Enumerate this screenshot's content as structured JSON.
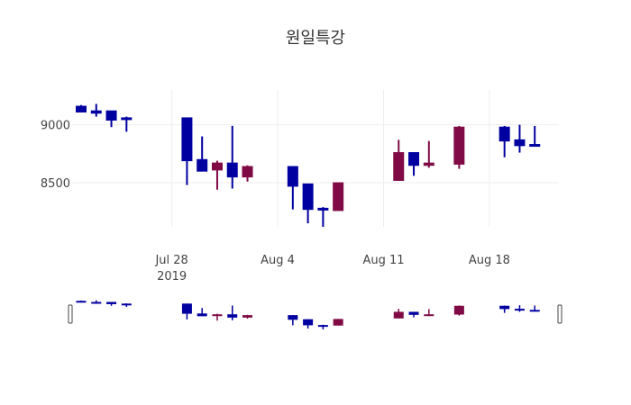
{
  "chart_data": {
    "type": "candlestick",
    "title": "원일특강",
    "xlabel": "",
    "ylabel": "",
    "ylim": [
      8120,
      9300
    ],
    "y_ticks": [
      8500,
      9000
    ],
    "x_ticks": [
      {
        "date": "2019-07-28",
        "label": "Jul 28",
        "sublabel": "2019"
      },
      {
        "date": "2019-08-04",
        "label": "Aug 4",
        "sublabel": ""
      },
      {
        "date": "2019-08-11",
        "label": "Aug 11",
        "sublabel": ""
      },
      {
        "date": "2019-08-18",
        "label": "Aug 18",
        "sublabel": ""
      }
    ],
    "x_range": [
      "2019-07-22",
      "2019-08-22"
    ],
    "increasing_color": "#7f0a45",
    "decreasing_color": "#0000a0",
    "grid": true,
    "rangeslider": true,
    "candles": [
      {
        "date": "2019-07-22",
        "open": 9160,
        "high": 9170,
        "low": 9110,
        "close": 9110
      },
      {
        "date": "2019-07-23",
        "open": 9120,
        "high": 9180,
        "low": 9070,
        "close": 9100
      },
      {
        "date": "2019-07-24",
        "open": 9120,
        "high": 9120,
        "low": 8980,
        "close": 9040
      },
      {
        "date": "2019-07-25",
        "open": 9060,
        "high": 9070,
        "low": 8940,
        "close": 9050
      },
      {
        "date": "2019-07-29",
        "open": 9060,
        "high": 9060,
        "low": 8480,
        "close": 8690
      },
      {
        "date": "2019-07-30",
        "open": 8700,
        "high": 8900,
        "low": 8600,
        "close": 8600
      },
      {
        "date": "2019-07-31",
        "open": 8610,
        "high": 8690,
        "low": 8440,
        "close": 8670
      },
      {
        "date": "2019-08-01",
        "open": 8670,
        "high": 8990,
        "low": 8450,
        "close": 8550
      },
      {
        "date": "2019-08-02",
        "open": 8550,
        "high": 8650,
        "low": 8510,
        "close": 8640
      },
      {
        "date": "2019-08-05",
        "open": 8640,
        "high": 8640,
        "low": 8270,
        "close": 8470
      },
      {
        "date": "2019-08-06",
        "open": 8490,
        "high": 8490,
        "low": 8150,
        "close": 8270
      },
      {
        "date": "2019-08-07",
        "open": 8280,
        "high": 8290,
        "low": 8120,
        "close": 8270
      },
      {
        "date": "2019-08-08",
        "open": 8260,
        "high": 8500,
        "low": 8260,
        "close": 8500
      },
      {
        "date": "2019-08-12",
        "open": 8520,
        "high": 8870,
        "low": 8520,
        "close": 8760
      },
      {
        "date": "2019-08-13",
        "open": 8760,
        "high": 8760,
        "low": 8560,
        "close": 8650
      },
      {
        "date": "2019-08-14",
        "open": 8650,
        "high": 8860,
        "low": 8630,
        "close": 8670
      },
      {
        "date": "2019-08-16",
        "open": 8660,
        "high": 8990,
        "low": 8620,
        "close": 8980
      },
      {
        "date": "2019-08-19",
        "open": 8980,
        "high": 8990,
        "low": 8720,
        "close": 8860
      },
      {
        "date": "2019-08-20",
        "open": 8870,
        "high": 9000,
        "low": 8760,
        "close": 8820
      },
      {
        "date": "2019-08-21",
        "open": 8830,
        "high": 8990,
        "low": 8820,
        "close": 8820
      }
    ]
  }
}
